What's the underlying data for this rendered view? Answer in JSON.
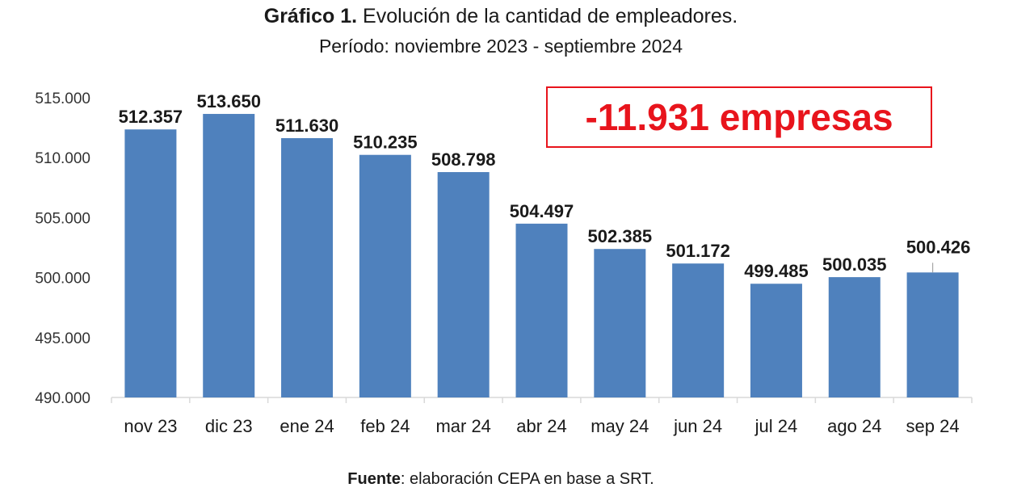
{
  "chart_data": {
    "type": "bar",
    "title_bold": "Gráfico 1.",
    "title": "Evolución de la cantidad de empleadores.",
    "subtitle": "Período: noviembre 2023 - septiembre 2024",
    "categories": [
      "nov 23",
      "dic 23",
      "ene 24",
      "feb 24",
      "mar 24",
      "abr 24",
      "may 24",
      "jun 24",
      "jul 24",
      "ago 24",
      "sep 24"
    ],
    "values": [
      512357,
      513650,
      511630,
      510235,
      508798,
      504497,
      502385,
      501172,
      499485,
      500035,
      500426
    ],
    "data_labels": [
      "512.357",
      "513.650",
      "511.630",
      "510.235",
      "508.798",
      "504.497",
      "502.385",
      "501.172",
      "499.485",
      "500.035",
      "500.426"
    ],
    "ylim": [
      490000,
      515000
    ],
    "yticks": [
      490000,
      495000,
      500000,
      505000,
      510000,
      515000
    ],
    "ytick_labels": [
      "490.000",
      "495.000",
      "500.000",
      "505.000",
      "510.000",
      "515.000"
    ],
    "xlabel": "",
    "ylabel": "",
    "grid": false,
    "bar_color": "#4f81bd",
    "annotation": "-11.931 empresas",
    "annotation_color": "#e8141c",
    "source_bold": "Fuente",
    "source": ": elaboración CEPA en base a SRT."
  }
}
